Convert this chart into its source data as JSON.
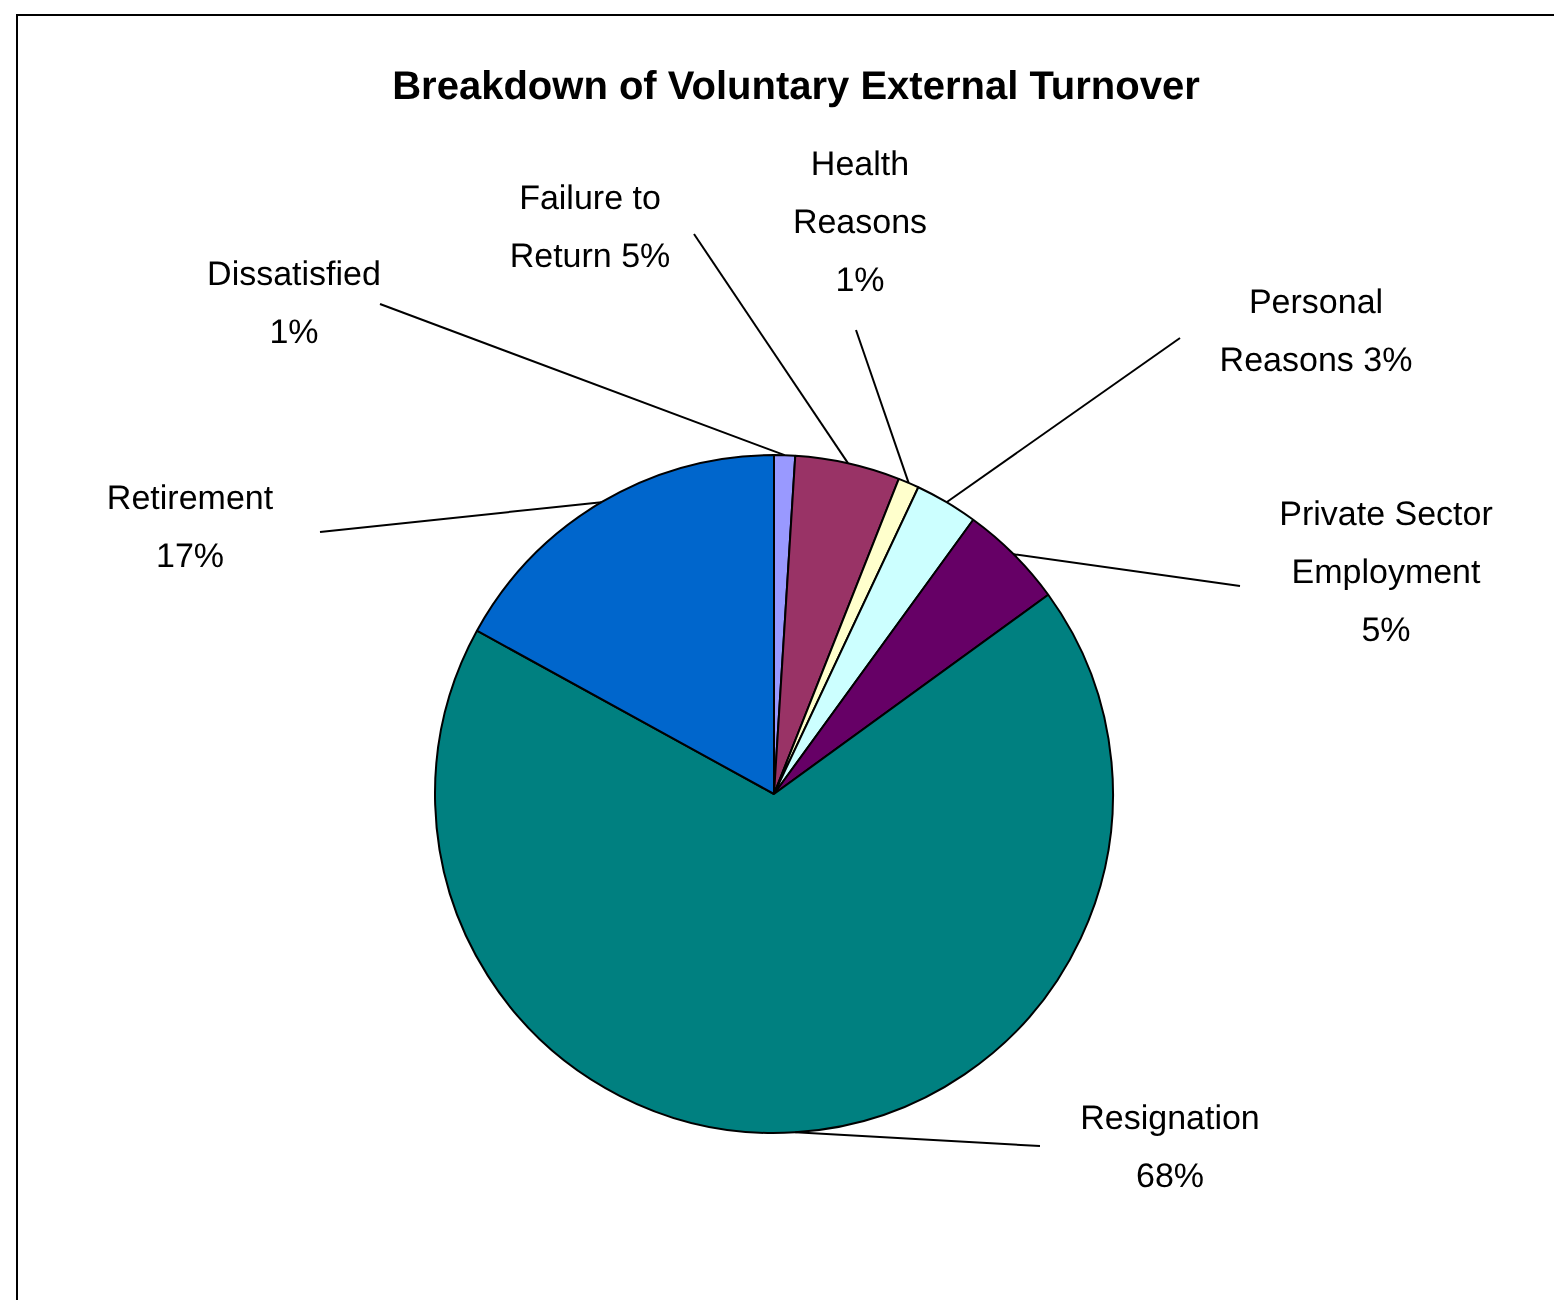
{
  "chart_data": {
    "type": "pie",
    "title": "Breakdown of Voluntary External Turnover",
    "categories": [
      "Dissatisfied",
      "Failure to Return",
      "Health Reasons",
      "Personal Reasons",
      "Private Sector Employment",
      "Resignation",
      "Retirement"
    ],
    "values": [
      1,
      5,
      1,
      3,
      5,
      68,
      17
    ],
    "value_labels": [
      "1%",
      "5%",
      "1%",
      "3%",
      "5%",
      "68%",
      "17%"
    ],
    "colors": [
      "#9999ff",
      "#993366",
      "#ffffcc",
      "#ccffff",
      "#660066",
      "#008080",
      "#0066cc"
    ],
    "legend": false
  }
}
